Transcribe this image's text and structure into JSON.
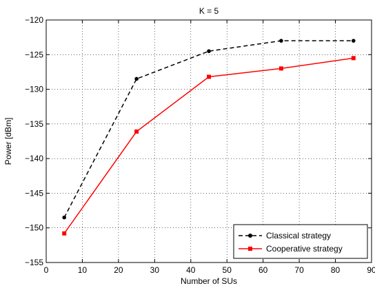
{
  "chart_data": {
    "type": "line",
    "title": "K = 5",
    "xlabel": "Number of SUs",
    "ylabel": "Power [dBm]",
    "xlim": [
      0,
      90
    ],
    "ylim": [
      -155,
      -120
    ],
    "xticks": [
      0,
      10,
      20,
      30,
      40,
      50,
      60,
      70,
      80,
      90
    ],
    "yticks": [
      -155,
      -150,
      -145,
      -140,
      -135,
      -130,
      -125,
      -120
    ],
    "xtick_labels": [
      "0",
      "10",
      "20",
      "30",
      "40",
      "50",
      "60",
      "70",
      "80",
      "90"
    ],
    "ytick_labels": [
      "−155",
      "−150",
      "−145",
      "−140",
      "−135",
      "−130",
      "−125",
      "−120"
    ],
    "grid": true,
    "legend_position": "bottom-right",
    "x": [
      5,
      25,
      45,
      65,
      85
    ],
    "series": [
      {
        "name": "Classical strategy",
        "values": [
          -148.5,
          -128.5,
          -124.5,
          -123.0,
          -123.0
        ],
        "color": "#000000",
        "line_style": "dashed",
        "marker": "circle"
      },
      {
        "name": "Cooperative strategy",
        "values": [
          -150.8,
          -136.1,
          -128.2,
          -127.0,
          -125.5
        ],
        "color": "#ff0000",
        "line_style": "solid",
        "marker": "square"
      }
    ]
  }
}
